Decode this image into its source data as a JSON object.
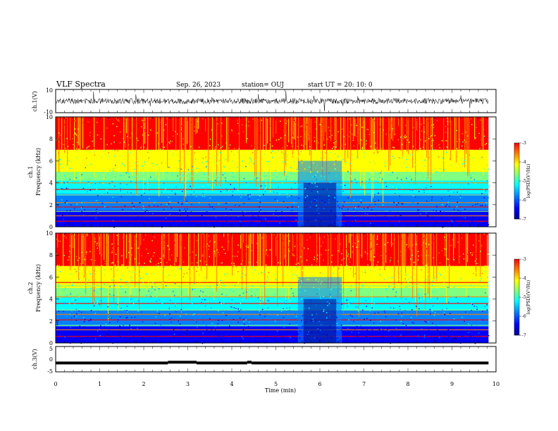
{
  "header": {
    "title": "VLF Spectra",
    "date": "Sep. 26, 2023",
    "station": "station= OUJ",
    "start": "start  UT  =   20: 10: 0"
  },
  "colors": {
    "spectrogram_colormap": [
      "#00008f",
      "#0000ff",
      "#0080ff",
      "#00ffff",
      "#80ff80",
      "#ffff00",
      "#ff8000",
      "#ff0000"
    ],
    "background": "#ffffff",
    "axis": "#000000"
  },
  "chart_data": [
    {
      "type": "line",
      "panel": "ch1-waveform",
      "ylabel": "ch.1(V)",
      "ylim": [
        -10,
        10
      ],
      "ytick_labels": [
        "10",
        "-10"
      ],
      "description_values": "noisy waveform around 0 V amplitude approx +/-3 V with spikes",
      "xlim": [
        0,
        10
      ]
    },
    {
      "type": "heatmap",
      "panel": "ch1-spectrogram",
      "ylabel": "ch.1\nFrequency  (kHz)",
      "ylabel_lines": [
        "ch.1",
        "Frequency  (kHz)"
      ],
      "ylim": [
        0,
        10
      ],
      "ytick_labels": [
        "0",
        "2",
        "4",
        "6",
        "8",
        "10"
      ],
      "xlim": [
        0,
        10
      ],
      "data_extent_x": [
        0,
        9.83
      ],
      "colorbar": {
        "label": "log(PSD)(V²/Hz)",
        "range": [
          -7,
          -3
        ],
        "tick_labels": [
          "-3",
          "-4",
          "-5",
          "-6",
          "-7"
        ]
      },
      "bands_kHz": [
        0.5,
        1.0,
        1.4,
        1.8,
        2.2,
        2.9,
        3.4,
        4.0,
        4.6
      ],
      "disturbance_minutes": [
        5.5,
        6.5
      ]
    },
    {
      "type": "heatmap",
      "panel": "ch2-spectrogram",
      "ylabel": "ch.2\nFrequency  (kHz)",
      "ylabel_lines": [
        "ch.2",
        "Frequency  (kHz)"
      ],
      "ylim": [
        0,
        10
      ],
      "ytick_labels": [
        "0",
        "2",
        "4",
        "6",
        "8",
        "10"
      ],
      "xlim": [
        0,
        10
      ],
      "data_extent_x": [
        0,
        9.83
      ],
      "colorbar": {
        "label": "log(PSD)(V²/Hz)",
        "range": [
          -7,
          -3
        ],
        "tick_labels": [
          "-3",
          "-4",
          "-5",
          "-6",
          "-7"
        ]
      },
      "bands_kHz": [
        0.6,
        1.2,
        1.6,
        2.1,
        2.6,
        3.0,
        3.6,
        4.2,
        5.2,
        5.5
      ],
      "disturbance_minutes": [
        5.5,
        6.5
      ]
    },
    {
      "type": "line",
      "panel": "ch3-waveform",
      "ylabel": "ch.3(V)",
      "ylim": [
        -5,
        5
      ],
      "ytick_labels": [
        "5",
        "0",
        "-5"
      ],
      "xlim": [
        0,
        10
      ],
      "xlabel": "Time  (min)",
      "xtick_labels": [
        "0",
        "1",
        "2",
        "3",
        "4",
        "5",
        "6",
        "7",
        "8",
        "9",
        "10"
      ],
      "segments": [
        {
          "x": [
            0,
            2.55
          ],
          "y": -1.5
        },
        {
          "x": [
            2.55,
            3.2
          ],
          "y": -1.2
        },
        {
          "x": [
            3.2,
            4.35
          ],
          "y": -1.5
        },
        {
          "x": [
            4.35,
            4.45
          ],
          "y": -1.2
        },
        {
          "x": [
            4.45,
            9.83
          ],
          "y": -1.5
        }
      ]
    }
  ]
}
